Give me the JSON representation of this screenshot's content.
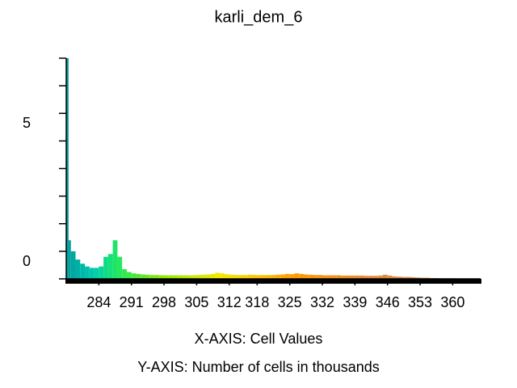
{
  "chart_data": {
    "type": "histogram",
    "title": "karli_dem_6",
    "x_label": "X-AXIS: Cell Values",
    "y_label": "Y-AXIS: Number of cells in thousands",
    "bins": [
      277,
      277.5,
      278,
      279,
      280,
      281,
      282,
      283,
      284,
      285,
      286,
      287,
      288,
      289,
      290,
      291,
      292,
      293,
      294,
      295,
      296,
      297,
      298,
      299,
      300,
      301,
      302,
      303,
      304,
      305,
      306,
      307,
      308,
      309,
      310,
      311,
      312,
      313,
      314,
      315,
      316,
      317,
      318,
      319,
      320,
      321,
      322,
      323,
      324,
      325,
      326,
      327,
      328,
      329,
      330,
      331,
      332,
      333,
      334,
      335,
      336,
      337,
      338,
      339,
      340,
      341,
      342,
      343,
      344,
      345,
      346,
      347,
      348,
      349,
      350,
      351,
      352,
      353,
      354,
      355,
      356,
      357,
      358,
      359,
      360,
      361,
      362,
      363,
      364,
      365,
      366
    ],
    "values": [
      8.0,
      1.4,
      1.0,
      0.7,
      0.55,
      0.45,
      0.4,
      0.4,
      0.45,
      0.8,
      0.9,
      1.4,
      0.8,
      0.35,
      0.25,
      0.2,
      0.18,
      0.16,
      0.15,
      0.14,
      0.14,
      0.13,
      0.13,
      0.13,
      0.13,
      0.13,
      0.13,
      0.13,
      0.13,
      0.14,
      0.15,
      0.16,
      0.18,
      0.22,
      0.2,
      0.17,
      0.15,
      0.14,
      0.14,
      0.14,
      0.15,
      0.14,
      0.14,
      0.14,
      0.14,
      0.14,
      0.15,
      0.16,
      0.18,
      0.17,
      0.2,
      0.18,
      0.16,
      0.15,
      0.14,
      0.14,
      0.13,
      0.13,
      0.13,
      0.13,
      0.12,
      0.12,
      0.12,
      0.12,
      0.12,
      0.11,
      0.11,
      0.11,
      0.12,
      0.15,
      0.12,
      0.09,
      0.08,
      0.07,
      0.07,
      0.06,
      0.05,
      0.04,
      0.04,
      0.03,
      0.03,
      0.02,
      0.02,
      0.02,
      0.02,
      0.01,
      0.01,
      0.01,
      0.01,
      0.01
    ],
    "color_stops": [
      {
        "value": 277,
        "color": "#009c9c"
      },
      {
        "value": 283,
        "color": "#00ccb0"
      },
      {
        "value": 288,
        "color": "#20e860"
      },
      {
        "value": 298,
        "color": "#90e800"
      },
      {
        "value": 310,
        "color": "#f4e800"
      },
      {
        "value": 318,
        "color": "#ffc400"
      },
      {
        "value": 326,
        "color": "#ff9a00"
      },
      {
        "value": 340,
        "color": "#e88a30"
      },
      {
        "value": 366,
        "color": "#c0906a"
      }
    ],
    "xlim": [
      277,
      366
    ],
    "xticks": [
      284,
      291,
      298,
      305,
      312,
      318,
      325,
      332,
      339,
      346,
      353,
      360
    ],
    "ylim": [
      0,
      8
    ],
    "yticks": [
      0,
      5
    ],
    "y_minor_ticks": [
      1,
      2,
      3,
      4,
      6,
      7,
      8
    ]
  }
}
